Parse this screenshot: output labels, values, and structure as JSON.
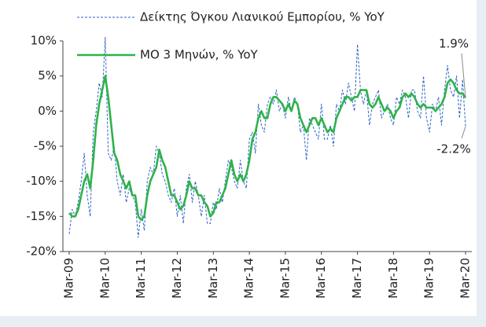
{
  "chart_data": {
    "type": "line",
    "categories": [
      "Mar-09",
      null,
      null,
      null,
      null,
      null,
      null,
      null,
      null,
      null,
      null,
      null,
      "Mar-10",
      null,
      null,
      null,
      null,
      null,
      null,
      null,
      null,
      null,
      null,
      null,
      "Mar-11",
      null,
      null,
      null,
      null,
      null,
      null,
      null,
      null,
      null,
      null,
      null,
      "Mar-12",
      null,
      null,
      null,
      null,
      null,
      null,
      null,
      null,
      null,
      null,
      null,
      "Mar-13",
      null,
      null,
      null,
      null,
      null,
      null,
      null,
      null,
      null,
      null,
      null,
      "Mar-14",
      null,
      null,
      null,
      null,
      null,
      null,
      null,
      null,
      null,
      null,
      null,
      "Mar-15",
      null,
      null,
      null,
      null,
      null,
      null,
      null,
      null,
      null,
      null,
      null,
      "Mar-16",
      null,
      null,
      null,
      null,
      null,
      null,
      null,
      null,
      null,
      null,
      null,
      "Mar-17",
      null,
      null,
      null,
      null,
      null,
      null,
      null,
      null,
      null,
      null,
      null,
      "Mar-18",
      null,
      null,
      null,
      null,
      null,
      null,
      null,
      null,
      null,
      null,
      null,
      "Mar-19",
      null,
      null,
      null,
      null,
      null,
      null,
      null,
      null,
      null,
      null,
      null,
      "Mar-20"
    ],
    "series": [
      {
        "name": "Δείκτης Όγκου Λιανικού Εμπορίου, % YoY",
        "color": "#2a63c4",
        "dashed": true,
        "values": [
          -17.5,
          -14,
          -15,
          -13,
          -10,
          -6,
          -12,
          -15,
          -3,
          0,
          4,
          2,
          10.5,
          -6,
          -7,
          -5,
          -10,
          -12,
          -9,
          -13,
          -11,
          -12,
          -13,
          -18,
          -14,
          -17,
          -10,
          -8,
          -9,
          -5,
          -6,
          -9,
          -10,
          -12,
          -13,
          -11,
          -15,
          -12,
          -16,
          -11,
          -9,
          -13,
          -10,
          -12,
          -15,
          -12,
          -16,
          -16,
          -13,
          -14,
          -11,
          -13,
          -10,
          -7,
          -8,
          -10,
          -11,
          -7,
          -10,
          -11,
          -4,
          -3,
          -6,
          1,
          -2,
          -3,
          1,
          2,
          1,
          3,
          0,
          1,
          -1,
          2,
          0,
          2,
          1,
          -3,
          -2,
          -7,
          -1,
          -2,
          -3,
          -4,
          1,
          -4,
          -4,
          -2,
          -5,
          1,
          0,
          3,
          1,
          4,
          2,
          0,
          9.5,
          3,
          1,
          3,
          -2,
          1,
          2,
          3,
          -1,
          0,
          1,
          -1,
          -2,
          2,
          1,
          3,
          2,
          -1,
          3,
          3,
          0,
          -1,
          5,
          -1,
          -3,
          1,
          0,
          2,
          -2,
          3,
          6.5,
          3,
          2,
          5,
          -1,
          4.5,
          -2.2
        ]
      },
      {
        "name": "ΜΟ 3 Μηνών, % YoY",
        "color": "#2db34a",
        "dashed": false,
        "values": [
          -14.5,
          -15,
          -15,
          -14,
          -12,
          -10,
          -9,
          -11,
          -7,
          -2,
          1,
          3,
          5,
          2,
          -2,
          -6,
          -7,
          -9,
          -10,
          -11,
          -10,
          -12,
          -12,
          -15,
          -15.5,
          -15,
          -12,
          -10,
          -9,
          -8,
          -5.5,
          -7,
          -8,
          -10,
          -12,
          -12,
          -13,
          -14,
          -13.5,
          -12,
          -10,
          -11,
          -11,
          -12,
          -12,
          -13,
          -13.5,
          -15,
          -14.5,
          -13,
          -13,
          -12,
          -11,
          -9,
          -7,
          -9,
          -10,
          -9,
          -10,
          -9,
          -7,
          -4,
          -3,
          -1,
          0,
          -1,
          -1,
          1,
          2,
          2,
          1.5,
          1,
          0,
          1,
          0,
          1.5,
          1,
          -1,
          -2,
          -3,
          -2,
          -1,
          -1,
          -2,
          -1,
          -2,
          -3,
          -2.5,
          -3,
          -1,
          0,
          1,
          2,
          2,
          1.5,
          2,
          2,
          3,
          3,
          3,
          1,
          0.5,
          1,
          2,
          1,
          0,
          0.5,
          0,
          -1,
          0,
          0.5,
          2,
          2.5,
          2,
          2.5,
          2,
          1,
          0.5,
          1,
          0.5,
          0.5,
          0.5,
          0,
          0.5,
          1,
          2,
          4,
          4.5,
          4,
          3,
          2.5,
          2.5,
          1.9
        ]
      }
    ],
    "annotations": [
      "1.9%",
      "-2.2%"
    ],
    "ylim": [
      -20,
      10
    ],
    "yticks": [
      {
        "value": -20,
        "label": "-20%"
      },
      {
        "value": -15,
        "label": "-15%"
      },
      {
        "value": -10,
        "label": "-10%"
      },
      {
        "value": -5,
        "label": "-5%"
      },
      {
        "value": 0,
        "label": "0%"
      },
      {
        "value": 5,
        "label": "5%"
      },
      {
        "value": 10,
        "label": "10%"
      }
    ],
    "grid": false,
    "legend": "top-left"
  }
}
